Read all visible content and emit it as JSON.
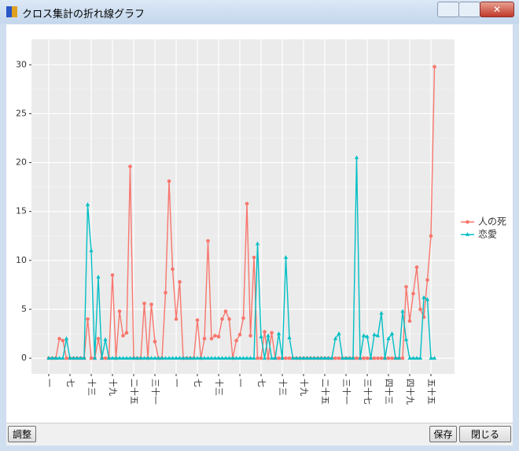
{
  "window": {
    "title": "クロス集計の折れ線グラフ",
    "buttons": {
      "adjust": "調整",
      "save": "保存",
      "close": "閉じる"
    }
  },
  "chart_data": {
    "type": "line",
    "categories": [
      "一",
      null,
      null,
      null,
      null,
      null,
      "七",
      null,
      null,
      null,
      null,
      null,
      "十三",
      null,
      null,
      null,
      null,
      null,
      "十九",
      null,
      null,
      null,
      null,
      null,
      "二十五",
      null,
      null,
      null,
      null,
      null,
      "三十一",
      null,
      null,
      null,
      null,
      null,
      "一",
      null,
      null,
      null,
      null,
      null,
      "七",
      null,
      null,
      null,
      null,
      null,
      "十三",
      null,
      null,
      null,
      null,
      null,
      "一",
      null,
      null,
      null,
      null,
      null,
      "七",
      null,
      null,
      null,
      null,
      null,
      "十三",
      null,
      null,
      null,
      null,
      null,
      "十九",
      null,
      null,
      null,
      null,
      null,
      "二十五",
      null,
      null,
      null,
      null,
      null,
      "三十一",
      null,
      null,
      null,
      null,
      null,
      "三十七",
      null,
      null,
      null,
      null,
      null,
      "四十三",
      null,
      null,
      null,
      null,
      null,
      "四十九",
      null,
      null,
      null,
      null,
      null,
      "五十五",
      null
    ],
    "series": [
      {
        "name": "人の死",
        "color": "#f8766d",
        "marker": "circle",
        "values": [
          0,
          0,
          0,
          2.0,
          1.8,
          0,
          0,
          0,
          0,
          0,
          0,
          4.0,
          0,
          0,
          2.0,
          0,
          0,
          0,
          8.5,
          0,
          4.8,
          2.3,
          2.6,
          19.6,
          0,
          0,
          0,
          5.6,
          0,
          5.5,
          1.7,
          0,
          0,
          6.7,
          18.1,
          9.1,
          4.0,
          7.8,
          0,
          0,
          0,
          0,
          3.9,
          0,
          2.0,
          12.0,
          2.0,
          2.3,
          2.2,
          4.0,
          4.8,
          4.0,
          0,
          1.8,
          2.4,
          4.1,
          15.8,
          2.3,
          10.3,
          0,
          0,
          2.7,
          0,
          2.6,
          0,
          0,
          0,
          0,
          0,
          0,
          0,
          0,
          0,
          0,
          0,
          0,
          0,
          0,
          0,
          0,
          0,
          0,
          0,
          0,
          0,
          0,
          0,
          0,
          0,
          0,
          0,
          0,
          0,
          0,
          0,
          0,
          0,
          0,
          0,
          0,
          0,
          7.3,
          3.8,
          6.6,
          9.3,
          5.0,
          4.2,
          8.0,
          12.5,
          29.8
        ]
      },
      {
        "name": "恋愛",
        "color": "#00bfc4",
        "marker": "triangle",
        "values": [
          0,
          0,
          0,
          0,
          0,
          2.0,
          0,
          0,
          0,
          0,
          0,
          15.7,
          11.0,
          0,
          8.3,
          0,
          1.9,
          0,
          0,
          0,
          0,
          0,
          0,
          0,
          0,
          0,
          0,
          0,
          0,
          0,
          0,
          0,
          0,
          0,
          0,
          0,
          0,
          0,
          0,
          0,
          0,
          0,
          0,
          0,
          0,
          0,
          0,
          0,
          0,
          0,
          0,
          0,
          0,
          0,
          0,
          0,
          0,
          0,
          0,
          11.7,
          2.2,
          0,
          2.3,
          0,
          0,
          2.5,
          0,
          10.3,
          2.1,
          0,
          0,
          0,
          0,
          0,
          0,
          0,
          0,
          0,
          0,
          0,
          0,
          2.0,
          2.5,
          0,
          0,
          0,
          0,
          20.5,
          0,
          2.3,
          2.2,
          0,
          2.4,
          2.3,
          4.6,
          0,
          2.0,
          2.5,
          0,
          0,
          4.8,
          1.9,
          0,
          0,
          0,
          0,
          6.2,
          6.0,
          0,
          0
        ]
      }
    ],
    "ylim": [
      -1.6,
      32.6
    ],
    "yticks": [
      0,
      5,
      10,
      15,
      20,
      25,
      30
    ],
    "grid": true,
    "legend": "right"
  }
}
